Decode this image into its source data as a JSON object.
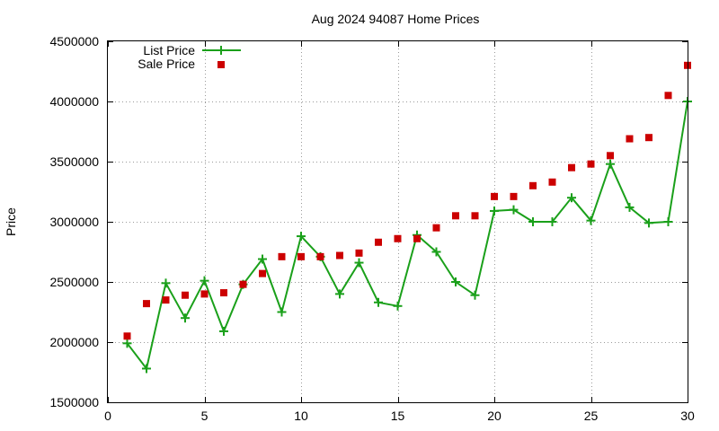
{
  "chart_data": {
    "type": "line",
    "title": "Aug 2024 94087 Home Prices",
    "xlabel": "",
    "ylabel": "Price",
    "xlim": [
      0,
      30
    ],
    "ylim": [
      1500000,
      4500000
    ],
    "x_ticks": [
      0,
      5,
      10,
      15,
      20,
      25,
      30
    ],
    "y_ticks": [
      1500000,
      2000000,
      2500000,
      3000000,
      3500000,
      4000000,
      4500000
    ],
    "grid": true,
    "legend_position": "top-left",
    "x": [
      1,
      2,
      3,
      4,
      5,
      6,
      7,
      8,
      9,
      10,
      11,
      12,
      13,
      14,
      15,
      16,
      17,
      18,
      19,
      20,
      21,
      22,
      23,
      24,
      25,
      26,
      27,
      28,
      29,
      30
    ],
    "series": [
      {
        "name": "List Price",
        "style": "linespoints",
        "marker": "plus",
        "color": "#1aa01a",
        "values": [
          1990000,
          1780000,
          2490000,
          2200000,
          2510000,
          2090000,
          2480000,
          2690000,
          2250000,
          2880000,
          2710000,
          2400000,
          2660000,
          2330000,
          2300000,
          2890000,
          2750000,
          2500000,
          2390000,
          3090000,
          3100000,
          3000000,
          3000000,
          3200000,
          3010000,
          3480000,
          3120000,
          2990000,
          3000000,
          4000000
        ]
      },
      {
        "name": "Sale Price",
        "style": "points",
        "marker": "square",
        "color": "#cc0000",
        "values": [
          2050000,
          2320000,
          2350000,
          2390000,
          2400000,
          2410000,
          2480000,
          2570000,
          2710000,
          2710000,
          2710000,
          2720000,
          2740000,
          2830000,
          2860000,
          2860000,
          2950000,
          3050000,
          3050000,
          3210000,
          3210000,
          3300000,
          3330000,
          3450000,
          3480000,
          3550000,
          3690000,
          3700000,
          4050000,
          4300000
        ]
      }
    ]
  }
}
